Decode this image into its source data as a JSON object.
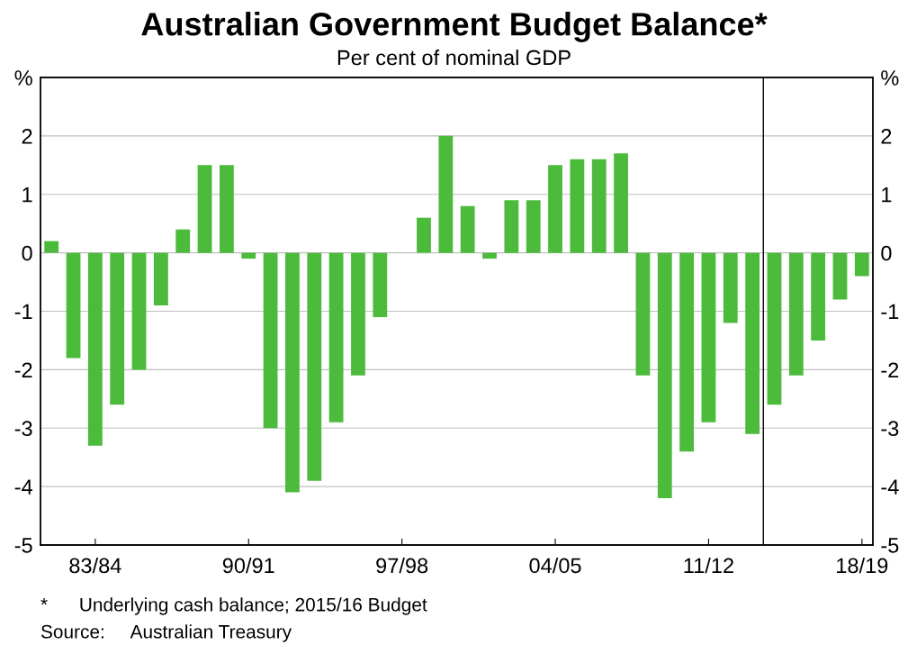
{
  "chart_data": {
    "type": "bar",
    "title": "Australian Government Budget Balance*",
    "subtitle": "Per cent of nominal GDP",
    "categories": [
      null,
      null,
      "83/84",
      null,
      null,
      null,
      null,
      null,
      null,
      "90/91",
      null,
      null,
      null,
      null,
      null,
      null,
      "97/98",
      null,
      null,
      null,
      null,
      null,
      null,
      "04/05",
      null,
      null,
      null,
      null,
      null,
      null,
      "11/12",
      null,
      null,
      null,
      null,
      null,
      null,
      "18/19"
    ],
    "values": [
      0.2,
      -1.8,
      -3.3,
      -2.6,
      -2.0,
      -0.9,
      0.4,
      1.5,
      1.5,
      -0.1,
      -3.0,
      -4.1,
      -3.9,
      -2.9,
      -2.1,
      -1.1,
      0.0,
      0.6,
      2.0,
      0.8,
      -0.1,
      0.9,
      0.9,
      1.5,
      1.6,
      1.6,
      1.7,
      -2.1,
      -4.2,
      -3.4,
      -2.9,
      -1.2,
      -3.1,
      -2.6,
      -2.1,
      -1.5,
      -0.8,
      -0.4
    ],
    "color": "#4cbb3c",
    "ylim": [
      -5,
      3
    ],
    "yticks": [
      -5,
      -4,
      -3,
      -2,
      -1,
      0,
      1,
      2,
      {
        "value": 3,
        "label": "%"
      }
    ],
    "y2lim": [
      -5,
      3
    ],
    "y2ticks": [
      -5,
      -4,
      -3,
      -2,
      -1,
      0,
      1,
      2,
      {
        "value": 3,
        "label": "%"
      }
    ],
    "grid": "y",
    "annotations": [
      "*      Underlying cash balance; 2015/16 Budget",
      "Source:     Australian Treasury"
    ]
  }
}
